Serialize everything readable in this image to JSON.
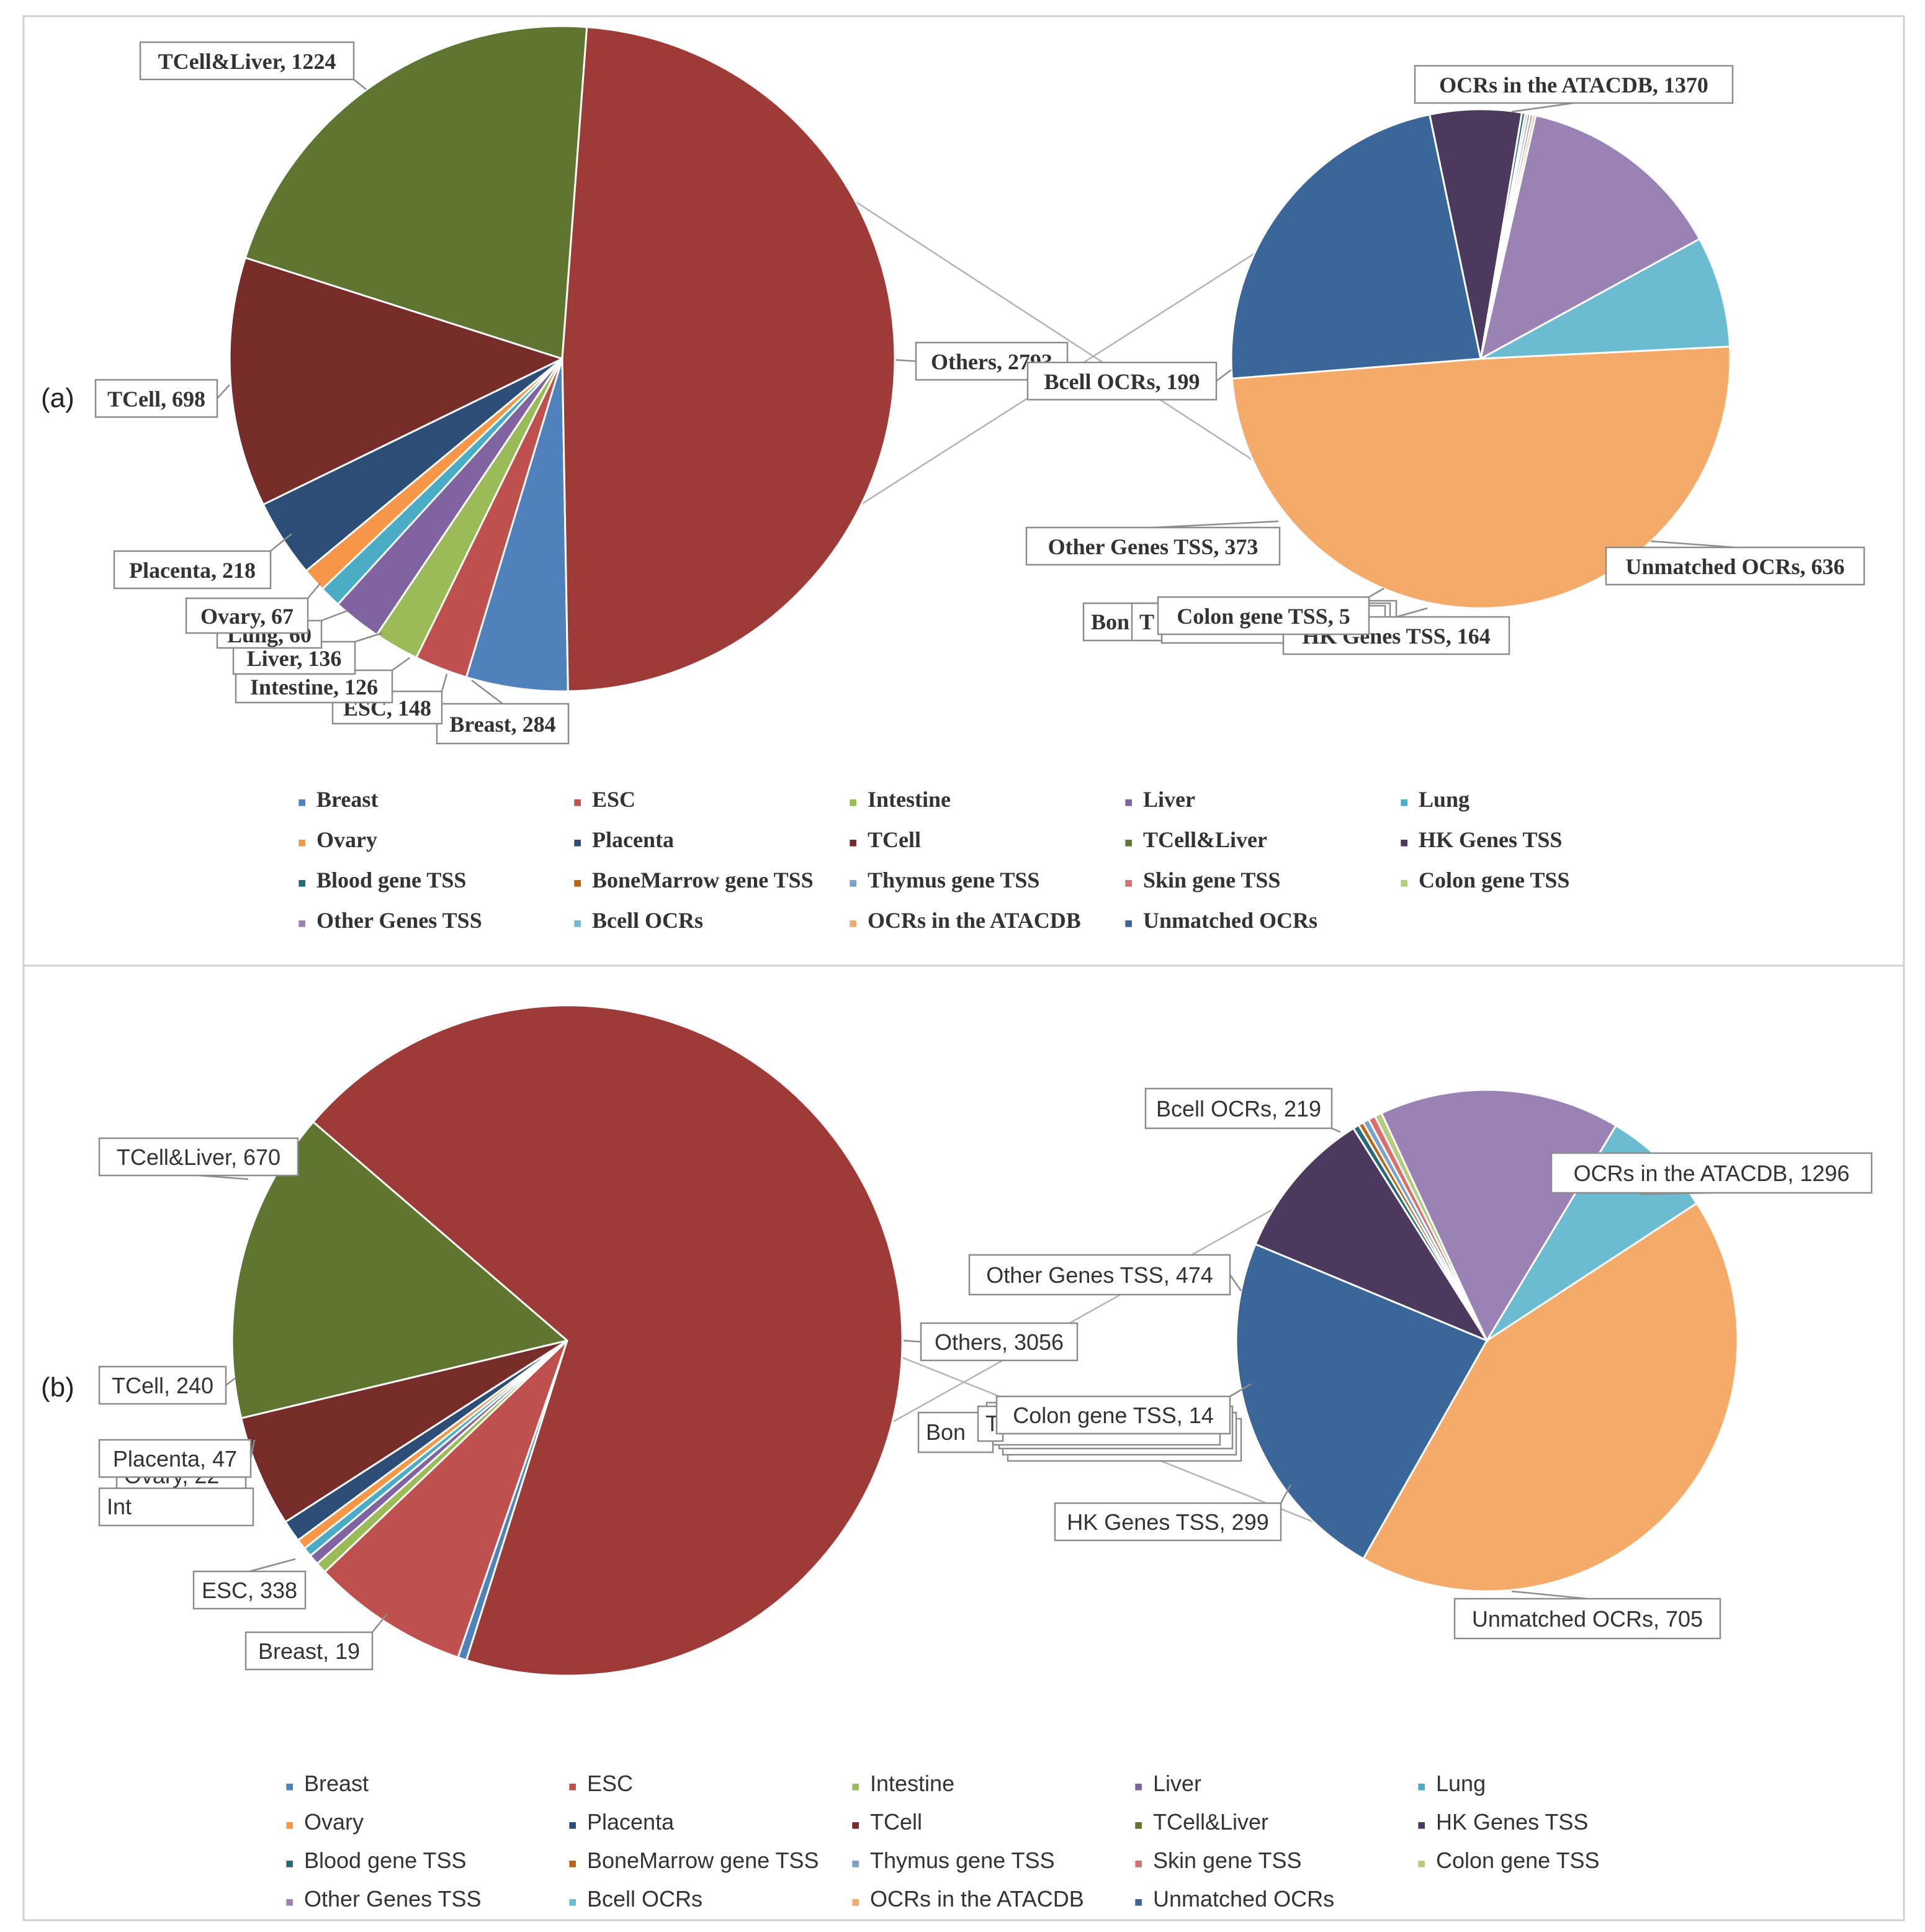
{
  "chart_data": [
    {
      "panel": "(a)",
      "type": "pie-of-pie",
      "legend_position": "bottom",
      "main_pie": [
        {
          "name": "Breast",
          "value": 284,
          "label": "Breast, 284",
          "color": "#4F81BD"
        },
        {
          "name": "ESC",
          "value": 148,
          "label": "ESC, 148",
          "color": "#C0504D"
        },
        {
          "name": "Intestine",
          "value": 126,
          "label": "Intestine, 126",
          "color": "#9BBB59"
        },
        {
          "name": "Liver",
          "value": 136,
          "label": "Liver, 136",
          "color": "#8064A2"
        },
        {
          "name": "Lung",
          "value": 60,
          "label": "Lung, 60",
          "color": "#4BACC6"
        },
        {
          "name": "Ovary",
          "value": 67,
          "label": "Ovary, 67",
          "color": "#F79646"
        },
        {
          "name": "Placenta",
          "value": 218,
          "label": "Placenta, 218",
          "color": "#2C4D75"
        },
        {
          "name": "TCell",
          "value": 698,
          "label": "TCell, 698",
          "color": "#772C2A"
        },
        {
          "name": "TCell&Liver",
          "value": 1224,
          "label": "TCell&Liver, 1224",
          "color": "#5F7530"
        },
        {
          "name": "Others",
          "value": 2793,
          "label": "Others, 2793",
          "color": "#9E3A38"
        }
      ],
      "secondary_pie": [
        {
          "name": "OCRs in the ATACDB",
          "value": 1370,
          "label": "OCRs in the ATACDB, 1370",
          "color": "#F5AA6A"
        },
        {
          "name": "Unmatched OCRs",
          "value": 636,
          "label": "Unmatched OCRs, 636",
          "color": "#3A6699"
        },
        {
          "name": "HK Genes TSS",
          "value": 164,
          "label": "HK Genes TSS, 164",
          "color": "#4B3A5E"
        },
        {
          "name": "Blood gene TSS",
          "value": 6,
          "label": "",
          "color": "#276A7C"
        },
        {
          "name": "BoneMarrow gene TSS",
          "value": 4,
          "label": "",
          "color": "#C0620F"
        },
        {
          "name": "Thymus gene TSS",
          "value": 5,
          "label": "",
          "color": "#7BA0CD"
        },
        {
          "name": "Skin gene TSS",
          "value": 5,
          "label": "",
          "color": "#D9706D"
        },
        {
          "name": "Colon gene TSS",
          "value": 5,
          "label": "Colon gene TSS, 5",
          "color": "#B3CC7E"
        },
        {
          "name": "Other Genes TSS",
          "value": 373,
          "label": "Other Genes TSS, 373",
          "color": "#9B82B4"
        },
        {
          "name": "Bcell OCRs",
          "value": 199,
          "label": "Bcell OCRs, 199",
          "color": "#6BBCD1"
        }
      ],
      "overlap_label_fragments": [
        "Bon",
        "T"
      ]
    },
    {
      "panel": "(b)",
      "type": "pie-of-pie",
      "legend_position": "bottom",
      "main_pie": [
        {
          "name": "Breast",
          "value": 19,
          "label": "Breast, 19",
          "color": "#4F81BD"
        },
        {
          "name": "ESC",
          "value": 338,
          "label": "ESC, 338",
          "color": "#C0504D"
        },
        {
          "name": "Intestine",
          "value": 24,
          "label": "",
          "color": "#9BBB59"
        },
        {
          "name": "Liver",
          "value": 22,
          "label": "",
          "color": "#8064A2"
        },
        {
          "name": "Lung",
          "value": 20,
          "label": "",
          "color": "#4BACC6"
        },
        {
          "name": "Ovary",
          "value": 22,
          "label": "",
          "color": "#F79646"
        },
        {
          "name": "Placenta",
          "value": 47,
          "label": "Placenta, 47",
          "color": "#2C4D75"
        },
        {
          "name": "TCell",
          "value": 240,
          "label": "TCell, 240",
          "color": "#772C2A"
        },
        {
          "name": "TCell&Liver",
          "value": 670,
          "label": "TCell&Liver, 670",
          "color": "#5F7530"
        },
        {
          "name": "Others",
          "value": 3056,
          "label": "Others, 3056",
          "color": "#9E3A38"
        }
      ],
      "secondary_pie": [
        {
          "name": "OCRs in the ATACDB",
          "value": 1296,
          "label": "OCRs in the ATACDB, 1296",
          "color": "#F5AA6A"
        },
        {
          "name": "Unmatched OCRs",
          "value": 705,
          "label": "Unmatched OCRs, 705",
          "color": "#3A6699"
        },
        {
          "name": "HK Genes TSS",
          "value": 299,
          "label": "HK Genes TSS, 299",
          "color": "#4B3A5E"
        },
        {
          "name": "Blood gene TSS",
          "value": 12,
          "label": "",
          "color": "#276A7C"
        },
        {
          "name": "BoneMarrow gene TSS",
          "value": 10,
          "label": "",
          "color": "#C0620F"
        },
        {
          "name": "Thymus gene TSS",
          "value": 12,
          "label": "",
          "color": "#7BA0CD"
        },
        {
          "name": "Skin gene TSS",
          "value": 14,
          "label": "",
          "color": "#D9706D"
        },
        {
          "name": "Colon gene TSS",
          "value": 14,
          "label": "Colon gene TSS, 14",
          "color": "#B3CC7E"
        },
        {
          "name": "Other Genes TSS",
          "value": 474,
          "label": "Other Genes TSS, 474",
          "color": "#9B82B4"
        },
        {
          "name": "Bcell OCRs",
          "value": 219,
          "label": "Bcell OCRs, 219",
          "color": "#6BBCD1"
        }
      ],
      "overlap_label_fragments": [
        "Bon",
        "T",
        "Ovary, 22",
        "Int"
      ]
    }
  ],
  "legend_items": [
    {
      "name": "Breast",
      "color": "#4F81BD"
    },
    {
      "name": "ESC",
      "color": "#C0504D"
    },
    {
      "name": "Intestine",
      "color": "#9BBB59"
    },
    {
      "name": "Liver",
      "color": "#8064A2"
    },
    {
      "name": "Lung",
      "color": "#4BACC6"
    },
    {
      "name": "Ovary",
      "color": "#F79646"
    },
    {
      "name": "Placenta",
      "color": "#2C4D75"
    },
    {
      "name": "TCell",
      "color": "#772C2A"
    },
    {
      "name": "TCell&Liver",
      "color": "#5F7530"
    },
    {
      "name": "HK Genes TSS",
      "color": "#4B3A5E"
    },
    {
      "name": "Blood gene TSS",
      "color": "#276A7C"
    },
    {
      "name": "BoneMarrow gene TSS",
      "color": "#C0620F"
    },
    {
      "name": "Thymus gene TSS",
      "color": "#7BA0CD"
    },
    {
      "name": "Skin gene TSS",
      "color": "#D9706D"
    },
    {
      "name": "Colon gene TSS",
      "color": "#B3CC7E"
    },
    {
      "name": "Other Genes TSS",
      "color": "#9B82B4"
    },
    {
      "name": "Bcell OCRs",
      "color": "#6BBCD1"
    },
    {
      "name": "OCRs in the ATACDB",
      "color": "#F5AA6A"
    },
    {
      "name": "Unmatched OCRs",
      "color": "#3A6699"
    }
  ],
  "legend_marker": "■"
}
